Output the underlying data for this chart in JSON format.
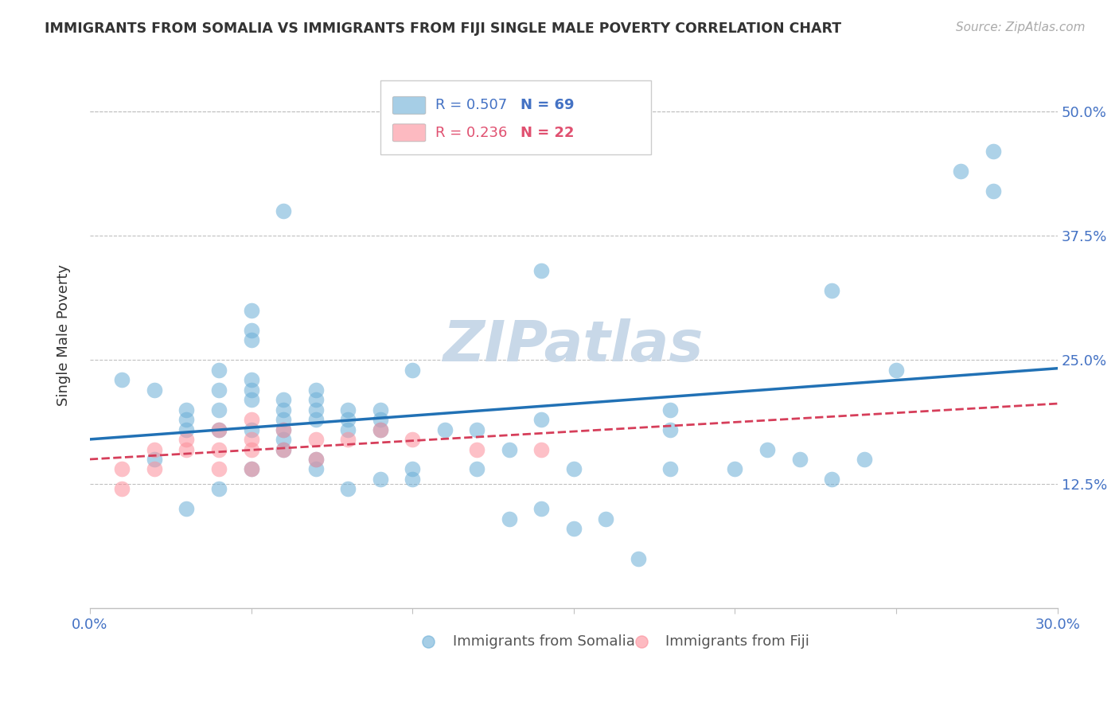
{
  "title": "IMMIGRANTS FROM SOMALIA VS IMMIGRANTS FROM FIJI SINGLE MALE POVERTY CORRELATION CHART",
  "source": "Source: ZipAtlas.com",
  "ylabel": "Single Male Poverty",
  "ytick_labels": [
    "50.0%",
    "37.5%",
    "25.0%",
    "12.5%"
  ],
  "ytick_values": [
    0.5,
    0.375,
    0.25,
    0.125
  ],
  "xlim": [
    0.0,
    0.3
  ],
  "ylim": [
    0.0,
    0.55
  ],
  "somalia_R": 0.507,
  "somalia_N": 69,
  "fiji_R": 0.236,
  "fiji_N": 22,
  "somalia_color": "#6baed6",
  "fiji_color": "#fc8d99",
  "somalia_line_color": "#2171b5",
  "fiji_line_color": "#d63e5a",
  "watermark": "ZIPatlas",
  "watermark_color": "#c8d8e8",
  "somalia_x": [
    0.01,
    0.02,
    0.02,
    0.03,
    0.03,
    0.03,
    0.03,
    0.04,
    0.04,
    0.04,
    0.04,
    0.04,
    0.05,
    0.05,
    0.05,
    0.05,
    0.05,
    0.05,
    0.05,
    0.06,
    0.06,
    0.06,
    0.06,
    0.06,
    0.06,
    0.07,
    0.07,
    0.07,
    0.07,
    0.07,
    0.07,
    0.08,
    0.08,
    0.08,
    0.08,
    0.09,
    0.09,
    0.09,
    0.1,
    0.1,
    0.1,
    0.11,
    0.12,
    0.12,
    0.13,
    0.13,
    0.14,
    0.14,
    0.15,
    0.15,
    0.16,
    0.17,
    0.18,
    0.18,
    0.18,
    0.2,
    0.21,
    0.22,
    0.23,
    0.24,
    0.25,
    0.27,
    0.28,
    0.28,
    0.14,
    0.06,
    0.05,
    0.23,
    0.09
  ],
  "somalia_y": [
    0.23,
    0.22,
    0.15,
    0.2,
    0.19,
    0.18,
    0.1,
    0.24,
    0.22,
    0.2,
    0.18,
    0.12,
    0.28,
    0.27,
    0.23,
    0.22,
    0.21,
    0.18,
    0.14,
    0.21,
    0.2,
    0.19,
    0.18,
    0.17,
    0.16,
    0.22,
    0.21,
    0.2,
    0.19,
    0.15,
    0.14,
    0.2,
    0.19,
    0.18,
    0.12,
    0.2,
    0.18,
    0.13,
    0.24,
    0.14,
    0.13,
    0.18,
    0.18,
    0.14,
    0.16,
    0.09,
    0.19,
    0.1,
    0.08,
    0.14,
    0.09,
    0.05,
    0.2,
    0.18,
    0.14,
    0.14,
    0.16,
    0.15,
    0.13,
    0.15,
    0.24,
    0.44,
    0.46,
    0.42,
    0.34,
    0.4,
    0.3,
    0.32,
    0.19
  ],
  "fiji_x": [
    0.01,
    0.01,
    0.02,
    0.02,
    0.03,
    0.03,
    0.04,
    0.04,
    0.04,
    0.05,
    0.05,
    0.05,
    0.05,
    0.06,
    0.06,
    0.07,
    0.07,
    0.08,
    0.09,
    0.1,
    0.12,
    0.14
  ],
  "fiji_y": [
    0.14,
    0.12,
    0.16,
    0.14,
    0.17,
    0.16,
    0.18,
    0.16,
    0.14,
    0.19,
    0.17,
    0.16,
    0.14,
    0.18,
    0.16,
    0.17,
    0.15,
    0.17,
    0.18,
    0.17,
    0.16,
    0.16
  ],
  "legend_somalia": "Immigrants from Somalia",
  "legend_fiji": "Immigrants from Fiji"
}
